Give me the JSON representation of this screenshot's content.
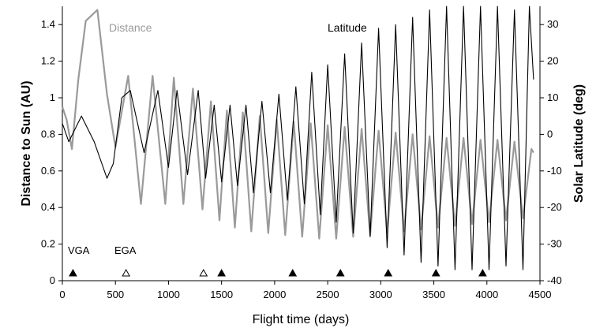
{
  "chart_data": {
    "type": "line",
    "xlabel": "Flight time (days)",
    "ylabel": "Distance to Sun (AU)",
    "ylabel_right": "Solar Latitude (deg)",
    "xlim": [
      0,
      4500
    ],
    "ylim": [
      0,
      1.5
    ],
    "ylim_right": [
      -40,
      35
    ],
    "x_ticks": [
      "0",
      "500",
      "1000",
      "1500",
      "2000",
      "2500",
      "3000",
      "3500",
      "4000",
      "4500"
    ],
    "y_ticks": [
      "0",
      "0.2",
      "0.4",
      "0.6",
      "0.8",
      "1",
      "1.2",
      "1.4"
    ],
    "y_ticks_right": [
      "-40",
      "-30",
      "-20",
      "-10",
      "0",
      "10",
      "20",
      "30"
    ],
    "grid": false,
    "series": [
      {
        "name": "Distance",
        "axis": "left",
        "color": "#9a9a9a",
        "x": [
          0,
          40,
          90,
          150,
          220,
          330,
          420,
          500,
          620,
          740,
          850,
          970,
          1050,
          1140,
          1230,
          1320,
          1400,
          1480,
          1550,
          1625,
          1700,
          1780,
          1860,
          1940,
          2020,
          2100,
          2180,
          2260,
          2340,
          2420,
          2500,
          2580,
          2660,
          2740,
          2820,
          2900,
          2980,
          3060,
          3140,
          3220,
          3300,
          3380,
          3460,
          3540,
          3620,
          3700,
          3780,
          3860,
          3940,
          4020,
          4100,
          4180,
          4260,
          4340,
          4420,
          4440
        ],
        "y": [
          0.95,
          0.88,
          0.72,
          1.1,
          1.42,
          1.48,
          1.02,
          0.73,
          1.12,
          0.42,
          1.12,
          0.42,
          1.11,
          0.42,
          1.05,
          0.39,
          0.98,
          0.33,
          0.93,
          0.29,
          0.92,
          0.27,
          0.9,
          0.26,
          0.88,
          0.25,
          0.87,
          0.24,
          0.86,
          0.23,
          0.85,
          0.23,
          0.84,
          0.24,
          0.83,
          0.25,
          0.82,
          0.26,
          0.81,
          0.27,
          0.8,
          0.28,
          0.79,
          0.29,
          0.78,
          0.3,
          0.78,
          0.31,
          0.77,
          0.32,
          0.77,
          0.33,
          0.76,
          0.34,
          0.72,
          0.7
        ]
      },
      {
        "name": "Latitude",
        "axis": "right",
        "color": "#000000",
        "x": [
          0,
          60,
          180,
          300,
          420,
          480,
          560,
          640,
          770,
          900,
          1000,
          1080,
          1180,
          1280,
          1350,
          1430,
          1500,
          1580,
          1650,
          1730,
          1800,
          1880,
          1960,
          2040,
          2120,
          2200,
          2280,
          2350,
          2430,
          2500,
          2580,
          2660,
          2740,
          2820,
          2900,
          2980,
          3060,
          3140,
          3220,
          3300,
          3380,
          3460,
          3540,
          3620,
          3700,
          3780,
          3860,
          3940,
          4020,
          4100,
          4180,
          4260,
          4340,
          4400,
          4440
        ],
        "y": [
          3,
          -2,
          5,
          -2,
          -12,
          -8,
          10,
          12,
          -5,
          12,
          -9,
          12,
          -11,
          12,
          -12,
          8,
          -13,
          8,
          -14,
          8,
          -16,
          9,
          -16,
          11,
          -18,
          13,
          -19,
          17,
          -22,
          19,
          -24,
          22,
          -27,
          25,
          -28,
          29,
          -31,
          30,
          -33,
          32,
          -35,
          34,
          -36,
          35,
          -37,
          35,
          -37,
          35,
          -37,
          35,
          -36,
          34,
          -37,
          35,
          15
        ]
      }
    ],
    "series_labels": [
      {
        "name": "Distance",
        "text": "Distance"
      },
      {
        "name": "Latitude",
        "text": "Latitude"
      }
    ],
    "event_labels": [
      "VGA",
      "EGA"
    ],
    "markers_filled": [
      100,
      1500,
      2170,
      2620,
      3070,
      3520,
      3960
    ],
    "markers_open": [
      600,
      1330
    ]
  }
}
